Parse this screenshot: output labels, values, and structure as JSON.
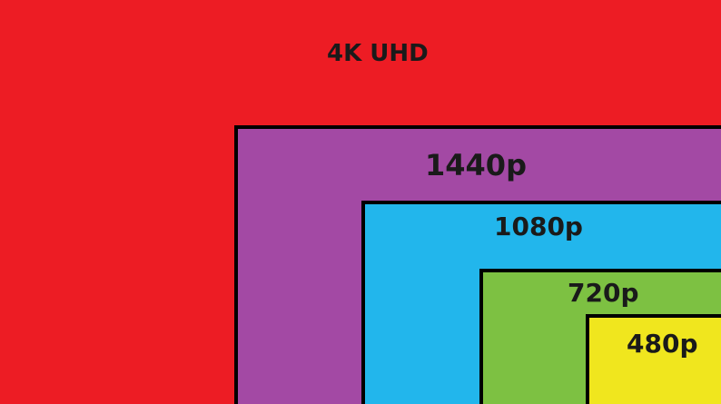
{
  "resolutions": [
    {
      "label": "4K UHD",
      "color": "#ED1C24"
    },
    {
      "label": "1440p",
      "color": "#A349A4"
    },
    {
      "label": "1080p",
      "color": "#22B6EC"
    },
    {
      "label": "720p",
      "color": "#7DC142"
    },
    {
      "label": "480p",
      "color": "#F0E61E"
    }
  ],
  "border_color": "#000000"
}
